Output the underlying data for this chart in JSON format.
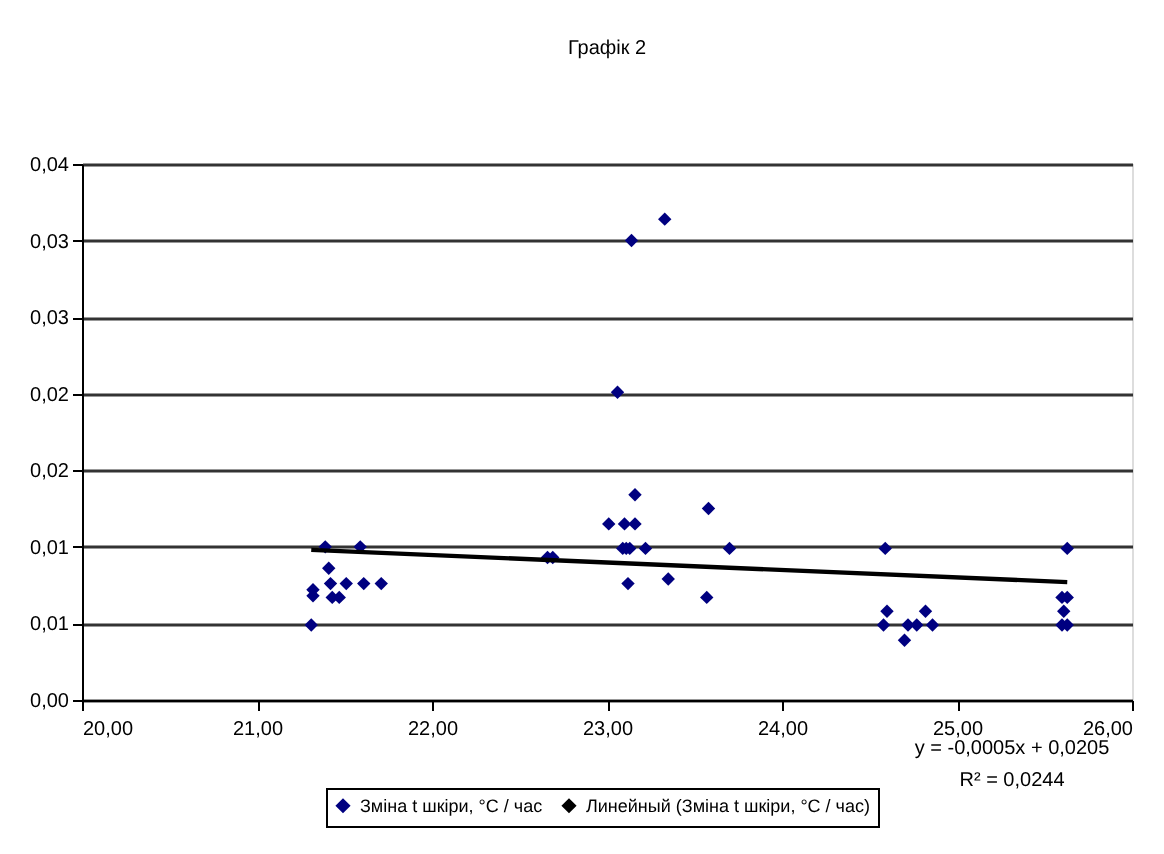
{
  "chart_data": {
    "type": "scatter",
    "title": "Графік 2",
    "series": [
      {
        "name": "Зміна t шкіри, °С / час",
        "color": "#000080",
        "marker": "diamond",
        "x": [
          21.31,
          21.32,
          21.32,
          21.39,
          21.41,
          21.42,
          21.43,
          21.47,
          21.51,
          21.59,
          21.61,
          21.71,
          22.66,
          22.69,
          23.33,
          23.14,
          23.06,
          23.16,
          23.01,
          23.1,
          23.16,
          23.09,
          23.11,
          23.13,
          23.22,
          23.12,
          23.35,
          23.58,
          23.57,
          23.7,
          24.59,
          24.6,
          24.58,
          24.72,
          24.7,
          24.77,
          24.82,
          24.86,
          25.63,
          25.6,
          25.63,
          25.61,
          25.6,
          25.63
        ],
        "values": [
          0.0049,
          0.0072,
          0.0068,
          0.01,
          0.0086,
          0.0076,
          0.0067,
          0.0067,
          0.0076,
          0.01,
          0.0076,
          0.0076,
          0.0093,
          0.0093,
          0.0314,
          0.03,
          0.0201,
          0.0134,
          0.0115,
          0.0115,
          0.0115,
          0.0099,
          0.0099,
          0.0099,
          0.0099,
          0.0076,
          0.0079,
          0.0125,
          0.0067,
          0.0099,
          0.0099,
          0.0058,
          0.0049,
          0.0049,
          0.0039,
          0.0049,
          0.0058,
          0.0049,
          0.0099,
          0.0067,
          0.0067,
          0.0058,
          0.0049,
          0.0049
        ]
      },
      {
        "name": "Линейный (Зміна t шкіри, °С / час)",
        "type": "line",
        "color": "#000000",
        "x": [
          21.31,
          25.63
        ],
        "values": [
          0.0098,
          0.0077
        ]
      }
    ],
    "xlim": [
      20,
      26
    ],
    "xticks": [
      {
        "value": 20,
        "label": "20,00"
      },
      {
        "value": 21,
        "label": "21,00"
      },
      {
        "value": 22,
        "label": "22,00"
      },
      {
        "value": 23,
        "label": "23,00"
      },
      {
        "value": 24,
        "label": "24,00"
      },
      {
        "value": 25,
        "label": "25,00"
      },
      {
        "value": 26,
        "label": "26,00"
      }
    ],
    "ylim": [
      0,
      0.035
    ],
    "yticks": [
      {
        "value": 0,
        "label": "0,00"
      },
      {
        "value": 0.005,
        "label": "0,01"
      },
      {
        "value": 0.01,
        "label": "0,01"
      },
      {
        "value": 0.015,
        "label": "0,02"
      },
      {
        "value": 0.02,
        "label": "0,02"
      },
      {
        "value": 0.025,
        "label": "0,03"
      },
      {
        "value": 0.03,
        "label": "0,03"
      },
      {
        "value": 0.035,
        "label": "0,04"
      }
    ],
    "grid": "y",
    "legend": "bottom",
    "annotations": [
      "y = -0,0005x + 0,0205",
      "R² = 0,0244"
    ]
  }
}
